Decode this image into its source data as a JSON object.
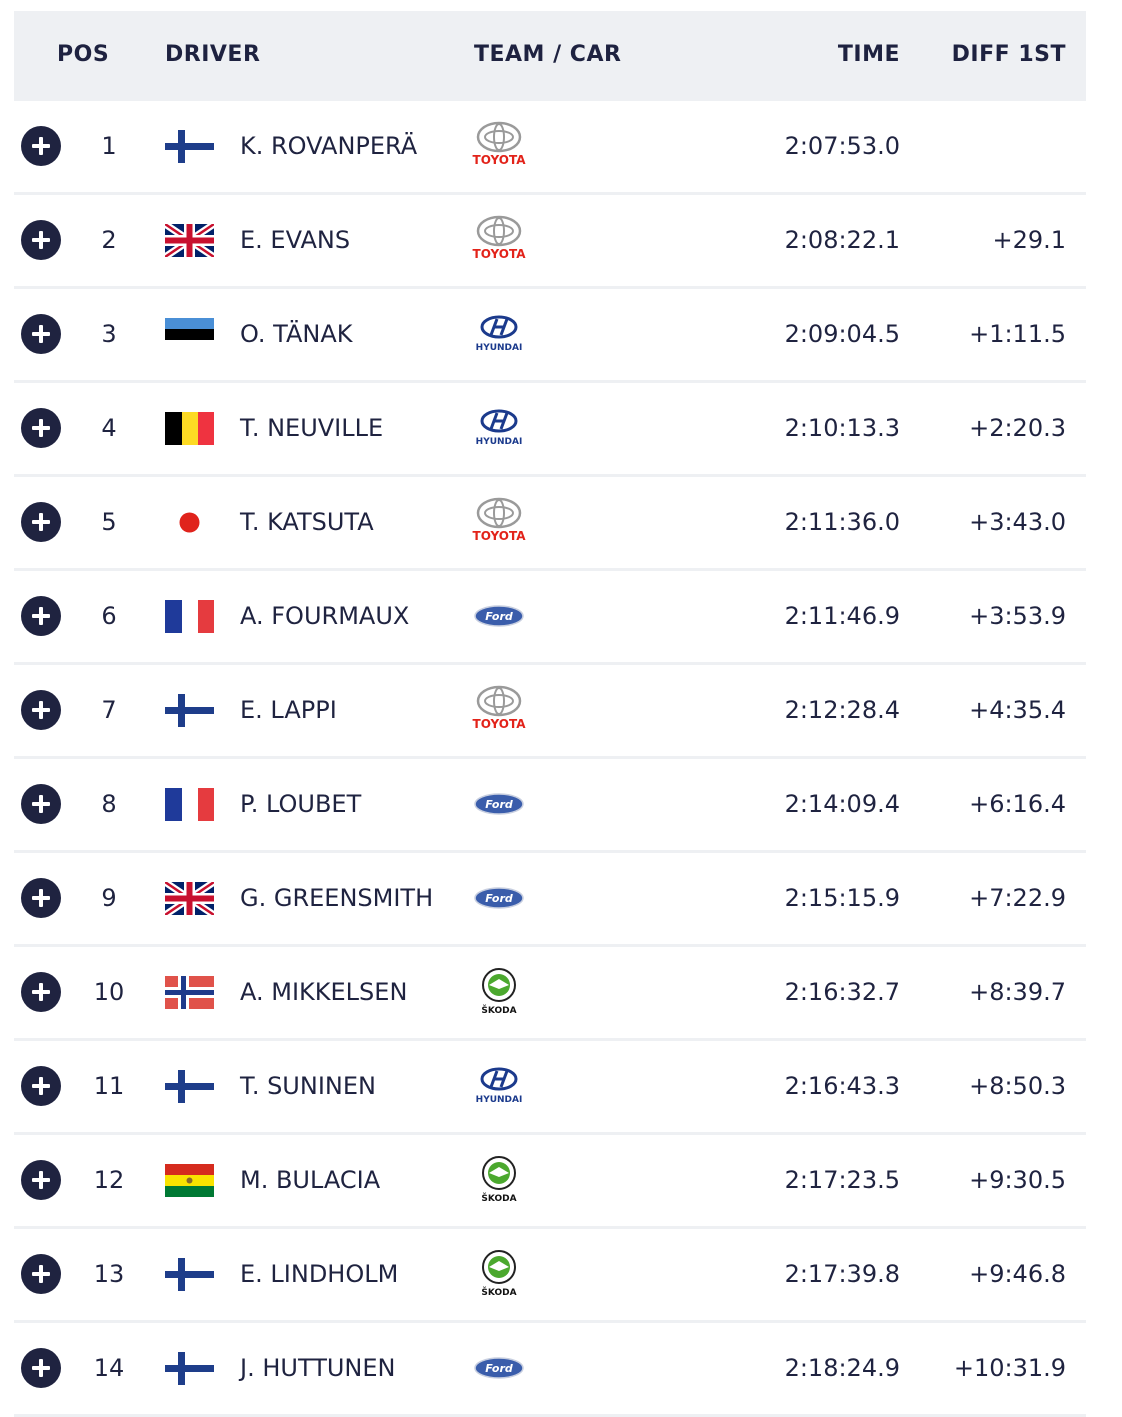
{
  "header": {
    "pos": "POS",
    "driver": "DRIVER",
    "team": "TEAM / CAR",
    "time": "TIME",
    "diff": "DIFF 1ST"
  },
  "rows": [
    {
      "pos": "1",
      "flag": "finland",
      "driver": "K. ROVANPERÄ",
      "team": "TOYOTA",
      "time": "2:07:53.0",
      "diff": ""
    },
    {
      "pos": "2",
      "flag": "united-kingdom",
      "driver": "E. EVANS",
      "team": "TOYOTA",
      "time": "2:08:22.1",
      "diff": "+29.1"
    },
    {
      "pos": "3",
      "flag": "estonia",
      "driver": "O. TÄNAK",
      "team": "HYUNDAI",
      "time": "2:09:04.5",
      "diff": "+1:11.5"
    },
    {
      "pos": "4",
      "flag": "belgium",
      "driver": "T. NEUVILLE",
      "team": "HYUNDAI",
      "time": "2:10:13.3",
      "diff": "+2:20.3"
    },
    {
      "pos": "5",
      "flag": "japan",
      "driver": "T. KATSUTA",
      "team": "TOYOTA",
      "time": "2:11:36.0",
      "diff": "+3:43.0"
    },
    {
      "pos": "6",
      "flag": "france",
      "driver": "A. FOURMAUX",
      "team": "Ford",
      "time": "2:11:46.9",
      "diff": "+3:53.9"
    },
    {
      "pos": "7",
      "flag": "finland",
      "driver": "E. LAPPI",
      "team": "TOYOTA",
      "time": "2:12:28.4",
      "diff": "+4:35.4"
    },
    {
      "pos": "8",
      "flag": "france",
      "driver": "P. LOUBET",
      "team": "Ford",
      "time": "2:14:09.4",
      "diff": "+6:16.4"
    },
    {
      "pos": "9",
      "flag": "united-kingdom",
      "driver": "G. GREENSMITH",
      "team": "Ford",
      "time": "2:15:15.9",
      "diff": "+7:22.9"
    },
    {
      "pos": "10",
      "flag": "norway",
      "driver": "A. MIKKELSEN",
      "team": "ŠKODA",
      "time": "2:16:32.7",
      "diff": "+8:39.7"
    },
    {
      "pos": "11",
      "flag": "finland",
      "driver": "T. SUNINEN",
      "team": "HYUNDAI",
      "time": "2:16:43.3",
      "diff": "+8:50.3"
    },
    {
      "pos": "12",
      "flag": "bolivia",
      "driver": "M. BULACIA",
      "team": "ŠKODA",
      "time": "2:17:23.5",
      "diff": "+9:30.5"
    },
    {
      "pos": "13",
      "flag": "finland",
      "driver": "E. LINDHOLM",
      "team": "ŠKODA",
      "time": "2:17:39.8",
      "diff": "+9:46.8"
    },
    {
      "pos": "14",
      "flag": "finland",
      "driver": "J. HUTTUNEN",
      "team": "Ford",
      "time": "2:18:24.9",
      "diff": "+10:31.9"
    }
  ],
  "icons": {
    "expand": "plus-circle-icon"
  },
  "colors": {
    "text": "#1f2340",
    "header_bg": "#eef0f3",
    "toyota_red": "#e2231a",
    "hyundai_blue": "#1b3a8c",
    "ford_blue": "#3a5dab",
    "skoda_green": "#4ba82e"
  }
}
